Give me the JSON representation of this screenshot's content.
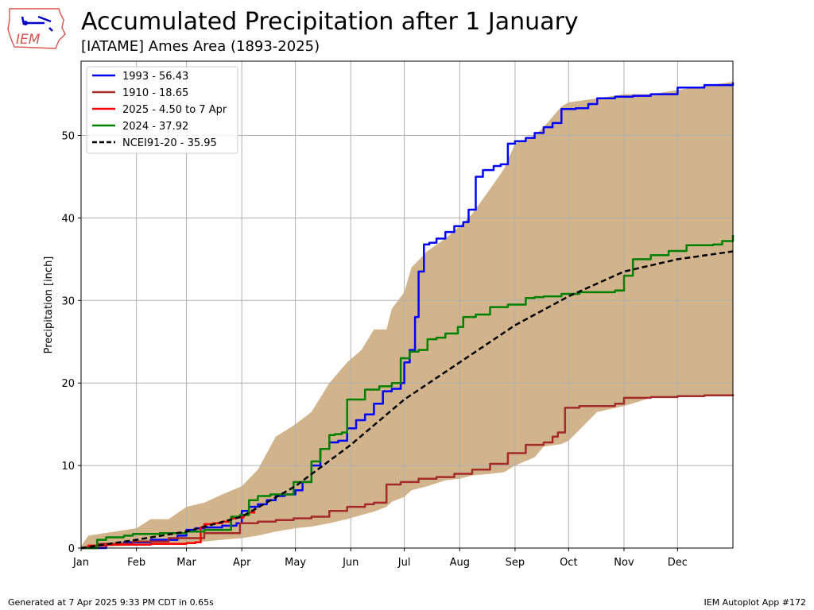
{
  "header": {
    "logo_text": "IEM",
    "title": "Accumulated Precipitation after 1 January",
    "subtitle": "[IATAME] Ames Area (1893-2025)"
  },
  "footer": {
    "generated": "Generated at 7 Apr 2025 9:33 PM CDT in 0.65s",
    "app": "IEM Autoplot App #172"
  },
  "colors": {
    "range_band": "#d2b48c",
    "series_1993": "#0000ff",
    "series_1910": "#a52a2a",
    "series_2025": "#ff0000",
    "series_2024": "#008000",
    "series_normal": "#000000"
  },
  "chart_data": {
    "type": "line",
    "title": "Accumulated Precipitation after 1 January",
    "subtitle": "[IATAME] Ames Area (1893-2025)",
    "xlabel": "",
    "ylabel": "Precipitation [inch]",
    "xlim": [
      1,
      366
    ],
    "ylim": [
      0,
      59
    ],
    "grid": true,
    "legend_position": "top-left",
    "x_ticks": [
      {
        "label": "Jan",
        "doy": 1
      },
      {
        "label": "Feb",
        "doy": 32
      },
      {
        "label": "Mar",
        "doy": 60
      },
      {
        "label": "Apr",
        "doy": 91
      },
      {
        "label": "May",
        "doy": 121
      },
      {
        "label": "Jun",
        "doy": 152
      },
      {
        "label": "Jul",
        "doy": 182
      },
      {
        "label": "Aug",
        "doy": 213
      },
      {
        "label": "Sep",
        "doy": 244
      },
      {
        "label": "Oct",
        "doy": 274
      },
      {
        "label": "Nov",
        "doy": 305
      },
      {
        "label": "Dec",
        "doy": 335
      }
    ],
    "y_ticks": [
      0,
      10,
      20,
      30,
      40,
      50
    ],
    "band": {
      "x": [
        1,
        5,
        20,
        32,
        40,
        50,
        60,
        70,
        80,
        91,
        100,
        110,
        121,
        130,
        140,
        150,
        158,
        165,
        172,
        175,
        182,
        186,
        195,
        205,
        213,
        220,
        230,
        238,
        244,
        255,
        260,
        270,
        274,
        290,
        305,
        320,
        335,
        350,
        366
      ],
      "upper": [
        0.2,
        1.5,
        2.0,
        2.4,
        3.5,
        3.5,
        5.0,
        5.5,
        6.5,
        7.5,
        9.5,
        13.5,
        15.0,
        16.5,
        20.0,
        22.5,
        24.0,
        26.5,
        26.5,
        29.0,
        31.0,
        34.0,
        36.0,
        37.5,
        39.0,
        40.5,
        43.5,
        46.0,
        49.0,
        50.0,
        51.0,
        53.5,
        54.0,
        54.5,
        55.0,
        55.0,
        55.5,
        56.0,
        56.5
      ],
      "lower": [
        0.0,
        0.0,
        0.2,
        0.3,
        0.4,
        0.5,
        0.6,
        0.8,
        1.0,
        1.2,
        1.5,
        2.0,
        2.4,
        2.6,
        3.0,
        3.5,
        4.0,
        4.4,
        5.0,
        5.6,
        6.2,
        7.0,
        7.5,
        8.2,
        8.4,
        8.8,
        9.0,
        9.2,
        10.0,
        11.0,
        12.3,
        12.6,
        13.0,
        16.5,
        17.2,
        18.2,
        18.3,
        18.5,
        18.6
      ]
    },
    "series": [
      {
        "name": "1993 - 56.43",
        "x": [
          1,
          15,
          25,
          40,
          55,
          60,
          65,
          70,
          80,
          88,
          91,
          95,
          100,
          105,
          110,
          115,
          121,
          125,
          130,
          135,
          140,
          145,
          150,
          155,
          160,
          165,
          170,
          175,
          180,
          182,
          185,
          188,
          190,
          193,
          196,
          200,
          205,
          210,
          215,
          218,
          222,
          226,
          232,
          236,
          240,
          244,
          250,
          255,
          260,
          265,
          270,
          278,
          285,
          290,
          300,
          310,
          320,
          335,
          350,
          366
        ],
        "y": [
          0.0,
          0.5,
          0.7,
          1.0,
          1.5,
          2.2,
          2.4,
          2.5,
          2.7,
          3.0,
          4.5,
          5.0,
          5.3,
          5.8,
          6.3,
          6.5,
          7.0,
          8.0,
          10.0,
          12.0,
          12.8,
          13.0,
          14.5,
          15.5,
          16.2,
          17.5,
          19.0,
          19.3,
          20.0,
          22.5,
          24.0,
          28.0,
          33.5,
          36.8,
          37.0,
          37.5,
          38.3,
          39.0,
          39.5,
          41.0,
          45.0,
          45.8,
          46.3,
          46.5,
          49.0,
          49.3,
          49.7,
          50.3,
          51.0,
          51.5,
          53.2,
          53.3,
          53.8,
          54.5,
          54.7,
          54.8,
          55.0,
          55.8,
          56.1,
          56.43
        ]
      },
      {
        "name": "1910 - 18.65",
        "x": [
          1,
          10,
          30,
          50,
          70,
          80,
          90,
          100,
          110,
          120,
          130,
          140,
          150,
          160,
          165,
          172,
          180,
          190,
          200,
          210,
          220,
          230,
          240,
          250,
          260,
          265,
          268,
          272,
          280,
          300,
          305,
          320,
          335,
          350,
          366
        ],
        "y": [
          0.0,
          0.5,
          0.8,
          1.2,
          1.8,
          1.8,
          3.0,
          3.2,
          3.4,
          3.6,
          3.8,
          4.5,
          5.0,
          5.3,
          5.5,
          7.7,
          8.0,
          8.4,
          8.6,
          9.0,
          9.5,
          10.2,
          11.5,
          12.5,
          12.8,
          13.5,
          14.0,
          17.0,
          17.2,
          17.5,
          18.2,
          18.3,
          18.4,
          18.5,
          18.65
        ]
      },
      {
        "name": "2025 - 4.50 to 7 Apr",
        "x": [
          1,
          5,
          15,
          25,
          32,
          40,
          45,
          50,
          55,
          60,
          65,
          68,
          70,
          75,
          80,
          85,
          88,
          92,
          95,
          98
        ],
        "y": [
          0.0,
          0.3,
          0.4,
          0.4,
          0.4,
          0.5,
          0.5,
          0.5,
          0.5,
          0.6,
          0.7,
          2.5,
          2.9,
          3.0,
          3.2,
          3.6,
          3.7,
          4.0,
          4.3,
          4.5
        ]
      },
      {
        "name": "2024 - 37.92",
        "x": [
          1,
          10,
          15,
          25,
          30,
          45,
          60,
          70,
          85,
          90,
          95,
          100,
          107,
          110,
          120,
          125,
          130,
          135,
          140,
          143,
          147,
          150,
          160,
          168,
          175,
          180,
          185,
          190,
          195,
          200,
          205,
          212,
          215,
          222,
          230,
          240,
          250,
          255,
          260,
          270,
          280,
          300,
          305,
          310,
          320,
          330,
          340,
          355,
          360,
          366
        ],
        "y": [
          0.0,
          1.0,
          1.3,
          1.5,
          1.7,
          1.8,
          2.0,
          2.2,
          3.8,
          4.0,
          5.8,
          6.3,
          6.5,
          6.5,
          8.0,
          8.0,
          10.5,
          12.0,
          13.7,
          13.8,
          14.0,
          18.0,
          19.2,
          19.6,
          20.0,
          23.0,
          23.8,
          24.0,
          25.3,
          25.5,
          26.0,
          26.8,
          28.0,
          28.3,
          29.2,
          29.5,
          30.3,
          30.4,
          30.5,
          30.8,
          31.0,
          31.2,
          33.0,
          35.0,
          35.5,
          36.0,
          36.7,
          36.8,
          37.2,
          37.92
        ]
      },
      {
        "name": "NCEI91-20 - 35.95",
        "dashed": true,
        "x": [
          1,
          32,
          60,
          91,
          121,
          152,
          182,
          213,
          244,
          274,
          305,
          335,
          366
        ],
        "y": [
          0.0,
          1.0,
          2.0,
          3.8,
          7.5,
          12.5,
          18.0,
          22.5,
          27.0,
          30.5,
          33.5,
          35.0,
          35.95
        ]
      }
    ]
  }
}
